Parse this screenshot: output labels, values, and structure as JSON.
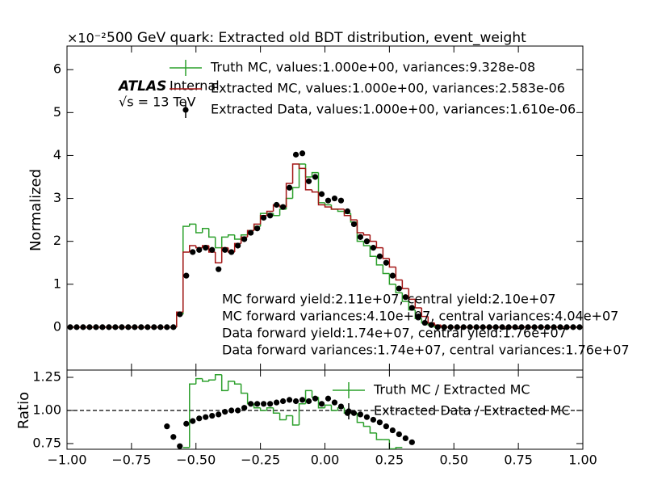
{
  "chart_data": [
    {
      "type": "histogram",
      "title": "500 GeV quark: Extracted old BDT distribution, event_weight",
      "y_offset_label": "×10⁻²",
      "ylabel": "Normalized",
      "experiment": "ATLAS",
      "status": "Internal",
      "energy": "√s = 13 TeV",
      "annotations": [
        "MC forward yield:2.11e+07, central yield:2.10e+07",
        "MC forward variances:4.10e+07, central variances:4.04e+07",
        "Data forward yield:1.74e+07, central yield:1.76e+07",
        "Data forward variances:1.74e+07, central variances:1.76e+07"
      ],
      "legend": "upper center",
      "xlim": [
        -1,
        1
      ],
      "xticks": [
        -1,
        -0.75,
        -0.5,
        -0.25,
        0,
        0.25,
        0.5,
        0.75,
        1
      ],
      "ylim": [
        -1,
        6.55
      ],
      "yticks": [
        0,
        1,
        2,
        3,
        4,
        5,
        6
      ],
      "bins": [
        -1,
        -0.975,
        -0.95,
        -0.925,
        -0.9,
        -0.875,
        -0.85,
        -0.825,
        -0.8,
        -0.775,
        -0.75,
        -0.725,
        -0.7,
        -0.675,
        -0.65,
        -0.625,
        -0.6,
        -0.575,
        -0.55,
        -0.525,
        -0.5,
        -0.475,
        -0.45,
        -0.425,
        -0.4,
        -0.375,
        -0.35,
        -0.325,
        -0.3,
        -0.275,
        -0.25,
        -0.225,
        -0.2,
        -0.175,
        -0.15,
        -0.125,
        -0.1,
        -0.075,
        -0.05,
        -0.025,
        0,
        0.025,
        0.05,
        0.075,
        0.1,
        0.125,
        0.15,
        0.175,
        0.2,
        0.225,
        0.25,
        0.275,
        0.3,
        0.325,
        0.35,
        0.375,
        0.4,
        0.425,
        0.45,
        0.475,
        0.5,
        0.525,
        0.55,
        0.575,
        0.6,
        0.625,
        0.65,
        0.675,
        0.7,
        0.725,
        0.75,
        0.775,
        0.8,
        0.825,
        0.85,
        0.875,
        0.9,
        0.925,
        0.95,
        0.975,
        1
      ],
      "series": [
        {
          "name": "Truth MC, values:1.000e+00, variances:9.328e-08",
          "color": "#2ca02c",
          "style": "step",
          "values": [
            0,
            0,
            0,
            0,
            0,
            0,
            0,
            0,
            0,
            0,
            0,
            0,
            0,
            0,
            0,
            0,
            0,
            0.3,
            2.35,
            2.4,
            2.2,
            2.3,
            2.1,
            1.85,
            2.1,
            2.15,
            2.05,
            2.15,
            2.25,
            2.35,
            2.65,
            2.65,
            2.6,
            2.75,
            3.0,
            3.25,
            3.8,
            3.5,
            3.6,
            2.9,
            2.85,
            2.75,
            2.7,
            2.65,
            2.45,
            2.0,
            1.9,
            1.65,
            1.45,
            1.25,
            1.0,
            0.8,
            0.6,
            0.4,
            0.2,
            0.1,
            0.05,
            0,
            0,
            0,
            0,
            0,
            0,
            0,
            0,
            0,
            0,
            0,
            0,
            0,
            0,
            0,
            0,
            0,
            0,
            0,
            0,
            0,
            0,
            0
          ]
        },
        {
          "name": "Extracted MC, values:1.000e+00, variances:2.583e-06",
          "color": "#a31515",
          "style": "step",
          "values": [
            0,
            0,
            0,
            0,
            0,
            0,
            0,
            0,
            0,
            0,
            0,
            0,
            0,
            0,
            0,
            0,
            0,
            0.35,
            1.75,
            1.9,
            1.85,
            1.9,
            1.75,
            1.5,
            1.85,
            1.75,
            1.95,
            2.1,
            2.25,
            2.4,
            2.6,
            2.7,
            2.85,
            2.8,
            3.35,
            3.8,
            3.7,
            3.2,
            3.15,
            2.85,
            2.8,
            2.75,
            2.75,
            2.6,
            2.5,
            2.2,
            2.15,
            2.0,
            1.85,
            1.6,
            1.4,
            1.1,
            0.9,
            0.65,
            0.45,
            0.25,
            0.1,
            0.05,
            0,
            0,
            0,
            0,
            0,
            0,
            0,
            0,
            0,
            0,
            0,
            0,
            0,
            0,
            0,
            0,
            0,
            0,
            0,
            0,
            0,
            0
          ]
        },
        {
          "name": "Extracted Data, values:1.000e+00, variances:1.610e-06",
          "color": "#000000",
          "style": "points",
          "values": [
            0,
            0,
            0,
            0,
            0,
            0,
            0,
            0,
            0,
            0,
            0,
            0,
            0,
            0,
            0,
            0,
            0,
            0.3,
            1.2,
            1.75,
            1.8,
            1.85,
            1.8,
            1.35,
            1.8,
            1.75,
            1.9,
            2.05,
            2.2,
            2.3,
            2.55,
            2.6,
            2.85,
            2.8,
            3.25,
            4.02,
            4.05,
            3.4,
            3.5,
            3.1,
            2.95,
            3.0,
            2.95,
            2.7,
            2.4,
            2.1,
            2.0,
            1.85,
            1.65,
            1.5,
            1.2,
            0.9,
            0.7,
            0.45,
            0.25,
            0.1,
            0.05,
            0,
            0,
            0,
            0,
            0,
            0,
            0,
            0,
            0,
            0,
            0,
            0,
            0,
            0,
            0,
            0,
            0,
            0,
            0,
            0,
            0,
            0,
            0
          ]
        }
      ]
    },
    {
      "type": "histogram",
      "ylabel": "Ratio",
      "legend": "upper right",
      "reference_line": 1,
      "xlim": [
        -1,
        1
      ],
      "xticks": [
        {
          "value": -1,
          "label": "−1.00"
        },
        {
          "value": -0.75,
          "label": "−0.75"
        },
        {
          "value": -0.5,
          "label": "−0.50"
        },
        {
          "value": -0.25,
          "label": "−0.25"
        },
        {
          "value": 0,
          "label": "0.00"
        },
        {
          "value": 0.25,
          "label": "0.25"
        },
        {
          "value": 0.5,
          "label": "0.50"
        },
        {
          "value": 0.75,
          "label": "0.75"
        },
        {
          "value": 1,
          "label": "1.00"
        }
      ],
      "ylim": [
        0.707,
        1.305
      ],
      "yticks": [
        0.75,
        {
          "value": 1,
          "label": "1.00"
        },
        1.25
      ],
      "series": [
        {
          "name": "Truth MC / Extracted MC",
          "color": "#2ca02c",
          "style": "step",
          "values": [
            null,
            null,
            null,
            null,
            null,
            null,
            null,
            null,
            null,
            null,
            null,
            null,
            null,
            null,
            null,
            null,
            null,
            null,
            0.72,
            1.2,
            1.24,
            1.22,
            1.23,
            1.27,
            1.15,
            1.22,
            1.2,
            1.13,
            1.05,
            1.02,
            1.0,
            1.02,
            0.98,
            0.93,
            0.96,
            0.89,
            1.05,
            1.15,
            1.1,
            1.02,
            1.04,
            1.0,
            1.02,
            0.98,
            0.98,
            0.91,
            0.88,
            0.83,
            0.78,
            0.78,
            0.71,
            0.72,
            null,
            null,
            null,
            null,
            null,
            null,
            null,
            null,
            null,
            null,
            null,
            null,
            null,
            null,
            null,
            null,
            null,
            null,
            null,
            null,
            null,
            null,
            null,
            null,
            null,
            null,
            null,
            null
          ]
        },
        {
          "name": "Extracted Data / Extracted MC",
          "color": "#000000",
          "style": "points",
          "values": [
            null,
            null,
            null,
            null,
            null,
            null,
            null,
            null,
            null,
            null,
            null,
            null,
            null,
            null,
            null,
            0.88,
            0.8,
            0.73,
            0.9,
            0.92,
            0.94,
            0.95,
            0.96,
            0.97,
            0.99,
            1.0,
            1.0,
            1.02,
            1.05,
            1.05,
            1.05,
            1.05,
            1.06,
            1.07,
            1.08,
            1.07,
            1.08,
            1.07,
            1.09,
            1.05,
            1.09,
            1.06,
            1.03,
            0.98,
            0.98,
            0.97,
            0.95,
            0.93,
            0.91,
            0.88,
            0.85,
            0.82,
            0.79,
            0.76,
            null,
            null,
            null,
            null,
            null,
            null,
            null,
            null,
            null,
            null,
            null,
            null,
            null,
            null,
            null,
            null,
            null,
            null,
            null,
            null,
            null,
            null
          ]
        }
      ]
    }
  ]
}
